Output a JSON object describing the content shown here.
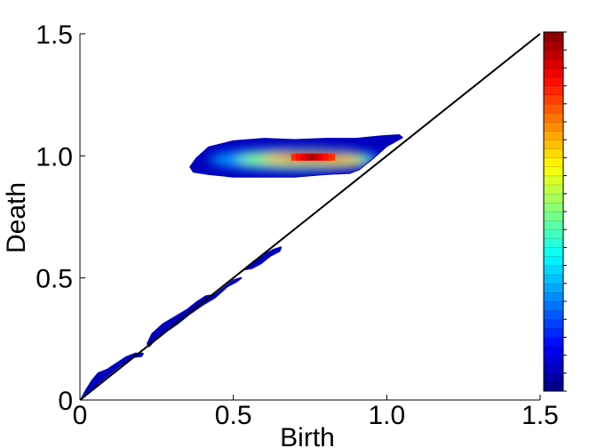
{
  "chart_data": {
    "type": "heatmap",
    "subtype": "persistence-diagram-density",
    "title": "",
    "xlabel": "Birth",
    "ylabel": "Death",
    "xlim": [
      0,
      1.5
    ],
    "ylim": [
      0,
      1.5
    ],
    "x_ticks": [
      0,
      0.5,
      1.0,
      1.5
    ],
    "x_tick_labels": [
      "0",
      "0.5",
      "1.0",
      "1.5"
    ],
    "y_ticks": [
      0,
      0.5,
      1.0,
      1.5
    ],
    "y_tick_labels": [
      "0",
      "0.5",
      "1.0",
      "1.5"
    ],
    "grid": false,
    "legend": "none",
    "diagonal": {
      "from": [
        0,
        0
      ],
      "to": [
        1.5,
        1.5
      ],
      "color": "#000000"
    },
    "colorbar": {
      "placement": "right",
      "colormap": "jet",
      "levels": 40,
      "tick_labels": []
    },
    "density_regions": [
      {
        "name": "main-cluster",
        "outline": [
          [
            0.36,
            0.955
          ],
          [
            0.38,
            0.99
          ],
          [
            0.42,
            1.035
          ],
          [
            0.5,
            1.06
          ],
          [
            0.6,
            1.07
          ],
          [
            0.7,
            1.065
          ],
          [
            0.8,
            1.07
          ],
          [
            0.9,
            1.07
          ],
          [
            0.98,
            1.08
          ],
          [
            1.04,
            1.085
          ],
          [
            1.05,
            1.075
          ],
          [
            1.0,
            1.04
          ],
          [
            0.95,
            0.985
          ],
          [
            0.91,
            0.945
          ],
          [
            0.88,
            0.93
          ],
          [
            0.8,
            0.925
          ],
          [
            0.7,
            0.915
          ],
          [
            0.6,
            0.915
          ],
          [
            0.5,
            0.915
          ],
          [
            0.42,
            0.925
          ],
          [
            0.37,
            0.935
          ]
        ],
        "peak": [
          0.76,
          0.995
        ],
        "peak_level": 0.95,
        "core": [
          {
            "cx": 0.76,
            "cy": 0.997,
            "rx": 0.1,
            "ry": 0.012,
            "level": 0.95
          },
          {
            "cx": 0.75,
            "cy": 0.99,
            "rx": 0.16,
            "ry": 0.022,
            "level": 0.72
          },
          {
            "cx": 0.73,
            "cy": 0.985,
            "rx": 0.22,
            "ry": 0.035,
            "level": 0.5
          },
          {
            "cx": 0.7,
            "cy": 0.985,
            "rx": 0.28,
            "ry": 0.045,
            "level": 0.28
          },
          {
            "cx": 0.85,
            "cy": 0.97,
            "rx": 0.08,
            "ry": 0.012,
            "level": 0.6
          }
        ]
      },
      {
        "name": "lower-band-1",
        "outline": [
          [
            0.005,
            0.005
          ],
          [
            0.02,
            0.04
          ],
          [
            0.04,
            0.08
          ],
          [
            0.06,
            0.11
          ],
          [
            0.09,
            0.125
          ],
          [
            0.12,
            0.15
          ],
          [
            0.15,
            0.175
          ],
          [
            0.18,
            0.19
          ],
          [
            0.205,
            0.19
          ],
          [
            0.2,
            0.18
          ],
          [
            0.17,
            0.175
          ],
          [
            0.13,
            0.14
          ],
          [
            0.09,
            0.1
          ],
          [
            0.06,
            0.07
          ],
          [
            0.035,
            0.04
          ],
          [
            0.015,
            0.015
          ]
        ],
        "peak_level": 0.06
      },
      {
        "name": "lower-band-2",
        "outline": [
          [
            0.22,
            0.23
          ],
          [
            0.235,
            0.27
          ],
          [
            0.27,
            0.31
          ],
          [
            0.31,
            0.34
          ],
          [
            0.35,
            0.37
          ],
          [
            0.38,
            0.4
          ],
          [
            0.41,
            0.425
          ],
          [
            0.44,
            0.43
          ],
          [
            0.47,
            0.46
          ],
          [
            0.5,
            0.49
          ],
          [
            0.525,
            0.5
          ],
          [
            0.51,
            0.485
          ],
          [
            0.48,
            0.465
          ],
          [
            0.44,
            0.42
          ],
          [
            0.4,
            0.39
          ],
          [
            0.36,
            0.355
          ],
          [
            0.32,
            0.315
          ],
          [
            0.28,
            0.28
          ],
          [
            0.24,
            0.24
          ],
          [
            0.225,
            0.22
          ]
        ],
        "peak_level": 0.06
      },
      {
        "name": "lower-band-3",
        "outline": [
          [
            0.535,
            0.535
          ],
          [
            0.57,
            0.57
          ],
          [
            0.6,
            0.595
          ],
          [
            0.63,
            0.615
          ],
          [
            0.655,
            0.625
          ],
          [
            0.65,
            0.61
          ],
          [
            0.62,
            0.59
          ],
          [
            0.59,
            0.56
          ],
          [
            0.56,
            0.54
          ]
        ],
        "peak_level": 0.06
      }
    ]
  }
}
